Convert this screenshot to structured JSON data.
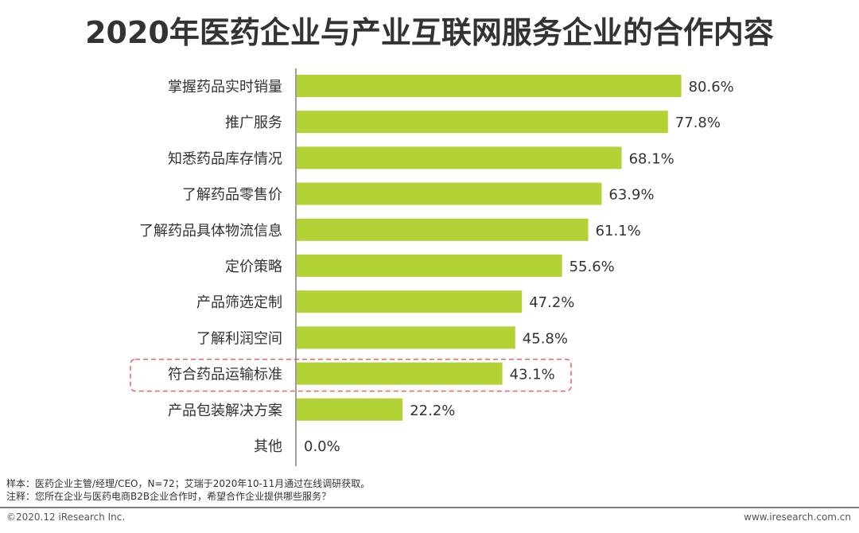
{
  "title": "2020年医药企业与产业互联网服务企业的合作内容",
  "chart_data": {
    "type": "bar",
    "orientation": "horizontal",
    "title": "2020年医药企业与产业互联网服务企业的合作内容",
    "categories": [
      "掌握药品实时销量",
      "推广服务",
      "知悉药品库存情况",
      "了解药品零售价",
      "了解药品具体物流信息",
      "定价策略",
      "产品筛选定制",
      "了解利润空间",
      "符合药品运输标准",
      "产品包装解决方案",
      "其他"
    ],
    "values": [
      80.6,
      77.8,
      68.1,
      63.9,
      61.1,
      55.6,
      47.2,
      45.8,
      43.1,
      22.2,
      0.0
    ],
    "labels": [
      "80.6%",
      "77.8%",
      "68.1%",
      "63.9%",
      "61.1%",
      "55.6%",
      "47.2%",
      "45.8%",
      "43.1%",
      "22.2%",
      "0.0%"
    ],
    "xlim": [
      0,
      100
    ],
    "highlighted_category": "符合药品运输标准",
    "bar_color": "#b2d235",
    "highlight_color": "#e06666",
    "grid": false,
    "legend": "none"
  },
  "notes": {
    "sample": "样本：医药企业主管/经理/CEO，N=72；艾瑞于2020年10-11月通过在线调研获取。",
    "note": "注释：您所在企业与医药电商B2B企业合作时，希望合作企业提供哪些服务？"
  },
  "footer": {
    "copyright": "©2020.12 iResearch Inc.",
    "website": "www.iresearch.com.cn"
  }
}
